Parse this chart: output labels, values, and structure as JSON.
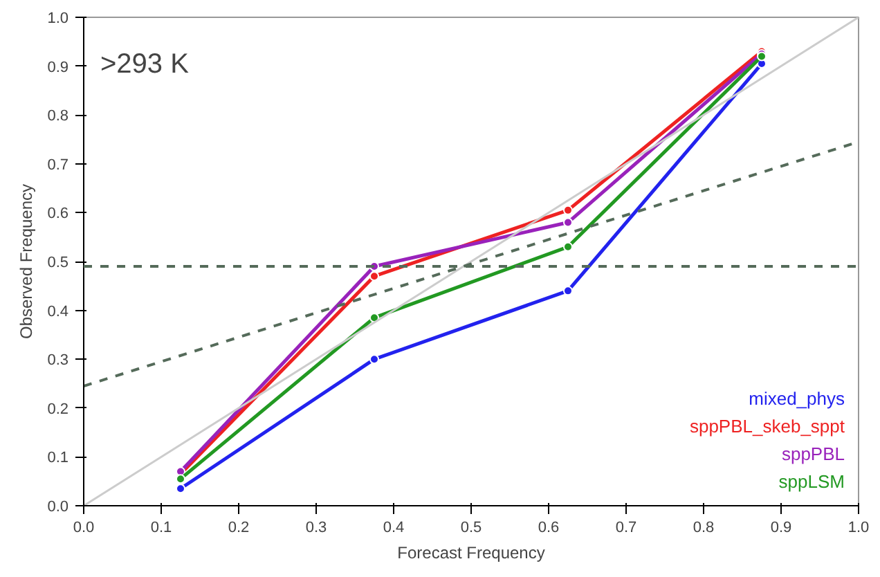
{
  "chart_data": {
    "type": "line",
    "xlabel": "Forecast Frequency",
    "ylabel": "Observed Frequency",
    "annotations": [
      ">293 K"
    ],
    "x": [
      0.125,
      0.375,
      0.625,
      0.875
    ],
    "series": [
      {
        "name": "mixed_phys",
        "color": "#2222ee",
        "values": [
          0.035,
          0.3,
          0.44,
          0.905
        ]
      },
      {
        "name": "sppPBL_skeb_sppt",
        "color": "#ee2222",
        "values": [
          0.065,
          0.47,
          0.605,
          0.93
        ]
      },
      {
        "name": "sppPBL",
        "color": "#9922bb",
        "values": [
          0.07,
          0.49,
          0.58,
          0.925
        ]
      },
      {
        "name": "sppLSM",
        "color": "#229922",
        "values": [
          0.055,
          0.385,
          0.53,
          0.92
        ]
      },
      {
        "type": "line",
        "x": [
          0,
          0.5,
          1
        ],
        "values": [
          0,
          0.5,
          1
        ],
        "color": "#cccccc",
        "marker": "none",
        "line_style": "solid"
      },
      {
        "type": "line",
        "x": [
          0,
          0.5,
          1
        ],
        "values": [
          0.245,
          0.495,
          0.745
        ],
        "color": "#556b5a",
        "marker": "none",
        "line_style": "dashed"
      }
    ],
    "ref_lines": [
      {
        "axis": "y",
        "value": 0.49,
        "color": "#556b5a",
        "line_style": "dashed"
      }
    ],
    "xlim": [
      0,
      1
    ],
    "ylim": [
      0,
      1
    ],
    "xticks": [
      {
        "value": 0,
        "label": "0.0"
      },
      0.1,
      0.2,
      0.3,
      0.4,
      0.5,
      0.6,
      0.7,
      0.8,
      0.9,
      {
        "value": 1,
        "label": "1.0"
      }
    ],
    "yticks": [
      {
        "value": 0,
        "label": "0.0"
      },
      0.1,
      0.2,
      0.3,
      0.4,
      0.5,
      0.6,
      0.7,
      0.8,
      0.9,
      {
        "value": 1,
        "label": "1.0"
      }
    ],
    "grid": false,
    "legend": "bottom right",
    "marker": "circle",
    "line_style": "solid"
  }
}
